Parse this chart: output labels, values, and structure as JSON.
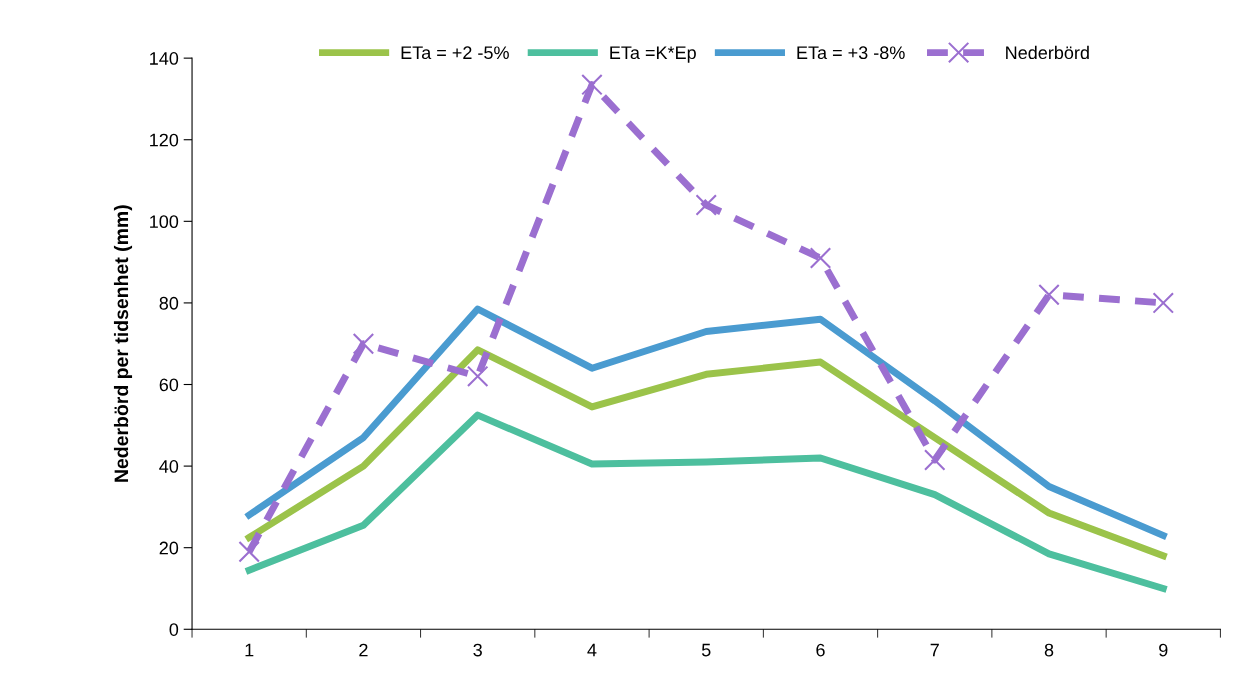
{
  "chart_data": {
    "type": "line",
    "ylabel": "Nederbörd per tidsenhet (mm)",
    "categories": [
      "1",
      "2",
      "3",
      "4",
      "5",
      "6",
      "7",
      "8",
      "9"
    ],
    "series": [
      {
        "name": "ETa = +2 -5%",
        "color": "#9bc34a",
        "values": [
          22.5,
          40,
          68.5,
          54.5,
          62.5,
          65.5,
          47,
          28.5,
          18
        ],
        "marker": "none",
        "line_style": "solid"
      },
      {
        "name": "ETa =K*Ep",
        "color": "#4dbf9e",
        "values": [
          14.5,
          25.5,
          52.5,
          40.5,
          41,
          42,
          33,
          18.5,
          10
        ],
        "marker": "none",
        "line_style": "solid"
      },
      {
        "name": "ETa = +3 -8%",
        "color": "#4a9bd0",
        "values": [
          28,
          47,
          78.5,
          64,
          73,
          76,
          56,
          35,
          23
        ],
        "marker": "none",
        "line_style": "solid"
      },
      {
        "name": "Nederbörd",
        "color": "#9b6fd0",
        "values": [
          19,
          70,
          62,
          133.5,
          104,
          91,
          41.5,
          82,
          80
        ],
        "marker": "cross",
        "line_style": "dashed"
      }
    ],
    "ylim": [
      0,
      140
    ],
    "yticks": [
      0,
      20,
      40,
      60,
      80,
      100,
      120,
      140
    ],
    "grid": false,
    "legend": "top"
  }
}
